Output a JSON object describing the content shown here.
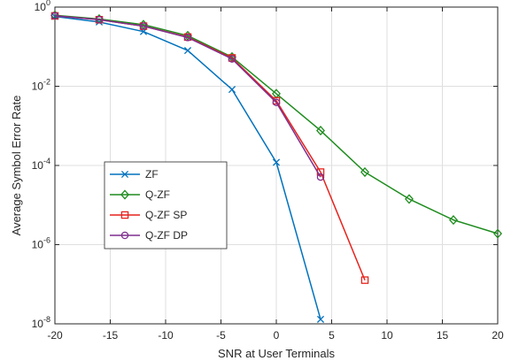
{
  "chart_data": {
    "type": "line",
    "title": "",
    "xlabel": "SNR at User Terminals",
    "ylabel": "Average Symbol Error Rate",
    "xlim": [
      -20,
      20
    ],
    "ylim": [
      1e-08,
      1
    ],
    "yscale": "log",
    "grid": true,
    "legend_position": "middle-left",
    "x_ticks": [
      -20,
      -15,
      -10,
      -5,
      0,
      5,
      10,
      15,
      20
    ],
    "y_ticks": [
      1,
      0.01,
      0.0001,
      1e-06,
      1e-08
    ],
    "y_tick_labels": [
      {
        "base": "10",
        "exp": "0"
      },
      {
        "base": "10",
        "exp": "-2"
      },
      {
        "base": "10",
        "exp": "-4"
      },
      {
        "base": "10",
        "exp": "-6"
      },
      {
        "base": "10",
        "exp": "-8"
      }
    ],
    "series": [
      {
        "name": "ZF",
        "color": "#0072BD",
        "marker": "x",
        "x": [
          -20,
          -16,
          -12,
          -8,
          -4,
          0,
          4
        ],
        "y": [
          0.58,
          0.42,
          0.24,
          0.08,
          0.0083,
          0.00012,
          1.3e-08
        ]
      },
      {
        "name": "Q-ZF",
        "color": "#1E8C1E",
        "marker": "diamond",
        "x": [
          -20,
          -16,
          -12,
          -8,
          -4,
          0,
          4,
          8,
          12,
          16,
          20
        ],
        "y": [
          0.62,
          0.5,
          0.36,
          0.19,
          0.055,
          0.0065,
          0.00076,
          6.8e-05,
          1.42e-05,
          4.2e-06,
          1.9e-06
        ]
      },
      {
        "name": "Q-ZF SP",
        "color": "#E6221C",
        "marker": "square",
        "x": [
          -20,
          -16,
          -12,
          -8,
          -4,
          0,
          4,
          8
        ],
        "y": [
          0.6,
          0.48,
          0.33,
          0.175,
          0.052,
          0.0043,
          6.8e-05,
          1.27e-07
        ]
      },
      {
        "name": "Q-ZF DP",
        "color": "#7E2F8E",
        "marker": "circle",
        "x": [
          -20,
          -16,
          -12,
          -8,
          -4,
          0,
          4
        ],
        "y": [
          0.6,
          0.48,
          0.33,
          0.17,
          0.049,
          0.0039,
          5.1e-05
        ]
      }
    ]
  }
}
